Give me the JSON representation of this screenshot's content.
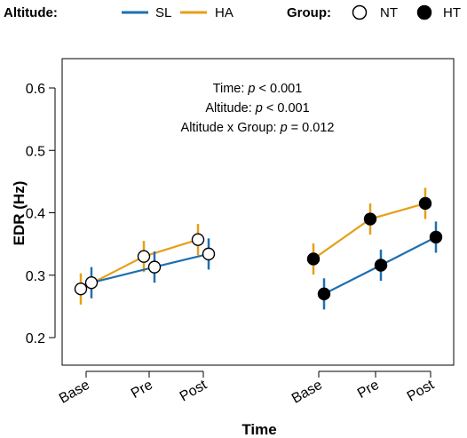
{
  "colors": {
    "SL": "#1f6fb0",
    "HA": "#e69f16",
    "NT_fill": "#ffffff",
    "HT_fill": "#000000"
  },
  "legend": {
    "altitude_title": "Altitude:",
    "altitude_items": [
      "SL",
      "HA"
    ],
    "group_title": "Group:",
    "group_items": [
      "NT",
      "HT"
    ]
  },
  "annotations": [
    {
      "prefix": "Time: ",
      "italic": "p",
      "suffix": " < 0.001"
    },
    {
      "prefix": "Altitude: ",
      "italic": "p",
      "suffix": " < 0.001"
    },
    {
      "prefix": "Altitude x Group: ",
      "italic": "p",
      "suffix": " = 0.012"
    }
  ],
  "chart_data": {
    "type": "line",
    "ylabel": "EDR (Hz)",
    "xlabel": "Time",
    "ylim": [
      0.15,
      0.65
    ],
    "yticks": [
      0.2,
      0.3,
      0.4,
      0.5,
      0.6
    ],
    "categories": [
      "Base",
      "Pre",
      "Post"
    ],
    "groups": [
      "NT",
      "HT"
    ],
    "series": [
      {
        "name": "SL",
        "group": "NT",
        "values": [
          0.288,
          0.313,
          0.334
        ],
        "err": [
          0.025,
          0.025,
          0.025
        ]
      },
      {
        "name": "HA",
        "group": "NT",
        "values": [
          0.278,
          0.33,
          0.357
        ],
        "err": [
          0.025,
          0.025,
          0.025
        ]
      },
      {
        "name": "SL",
        "group": "HT",
        "values": [
          0.27,
          0.316,
          0.361
        ],
        "err": [
          0.025,
          0.025,
          0.025
        ]
      },
      {
        "name": "HA",
        "group": "HT",
        "values": [
          0.326,
          0.39,
          0.415
        ],
        "err": [
          0.025,
          0.025,
          0.025
        ]
      }
    ]
  }
}
